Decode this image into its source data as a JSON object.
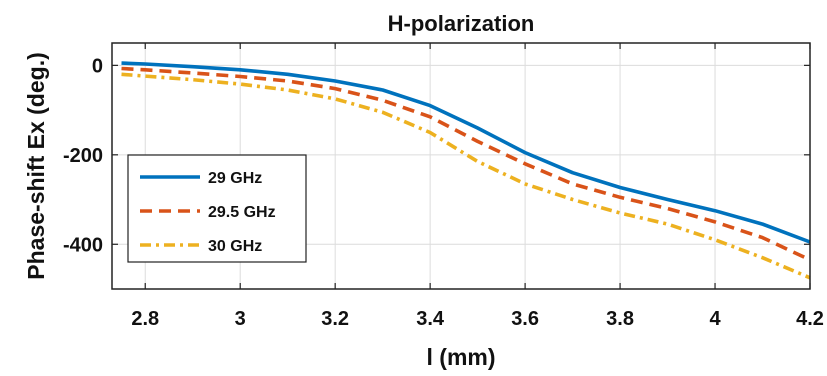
{
  "chart_data": {
    "type": "line",
    "title": "H-polarization",
    "xlabel": "l (mm)",
    "ylabel": "Phase-shift Ex (deg.)",
    "xlim": [
      2.73,
      4.2
    ],
    "ylim": [
      -500,
      50
    ],
    "xticks": [
      2.8,
      3,
      3.2,
      3.4,
      3.6,
      3.8,
      4,
      4.2
    ],
    "xtick_labels": [
      "2.8",
      "3",
      "3.2",
      "3.4",
      "3.6",
      "3.8",
      "4",
      "4.2"
    ],
    "yticks": [
      0,
      -200,
      -400
    ],
    "ytick_labels": [
      "0",
      "-200",
      "-400"
    ],
    "grid": true,
    "legend_position": "lower-left",
    "x": [
      2.75,
      2.8,
      2.9,
      3.0,
      3.1,
      3.2,
      3.3,
      3.4,
      3.5,
      3.6,
      3.7,
      3.8,
      3.9,
      4.0,
      4.1,
      4.2
    ],
    "series": [
      {
        "name": "29 GHz",
        "color": "#0072BD",
        "dash": "solid",
        "values": [
          5,
          3,
          -3,
          -10,
          -20,
          -35,
          -55,
          -90,
          -140,
          -195,
          -240,
          -273,
          -300,
          -325,
          -355,
          -395
        ]
      },
      {
        "name": "29.5 GHz",
        "color": "#D95319",
        "dash": "dash",
        "values": [
          -7,
          -10,
          -17,
          -25,
          -35,
          -52,
          -78,
          -115,
          -170,
          -220,
          -265,
          -295,
          -320,
          -350,
          -385,
          -435
        ]
      },
      {
        "name": "30 GHz",
        "color": "#EDB120",
        "dash": "dashdot",
        "values": [
          -20,
          -24,
          -32,
          -42,
          -55,
          -75,
          -105,
          -150,
          -215,
          -265,
          -300,
          -330,
          -355,
          -390,
          -430,
          -475
        ]
      }
    ]
  }
}
